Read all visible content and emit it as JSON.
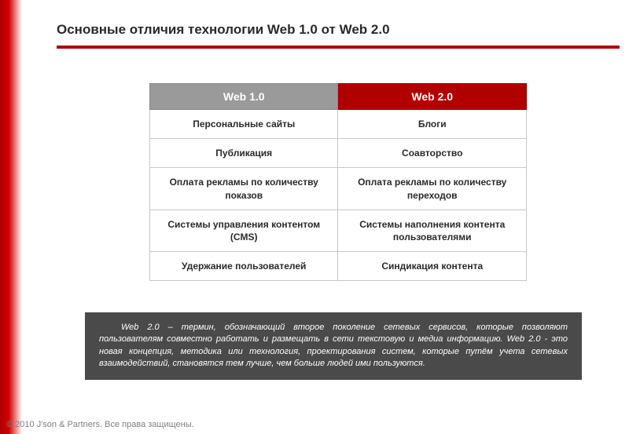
{
  "colors": {
    "accent_red": "#b00000",
    "header_gray": "#9a9a9a",
    "quote_bg": "#4a4a4a",
    "text_dark": "#2a2a2a",
    "border": "#c8c8c8",
    "footer_gray": "#808080",
    "white": "#ffffff"
  },
  "title": "Основные отличия технологии Web 1.0 от Web 2.0",
  "table": {
    "headers": {
      "left": "Web 1.0",
      "right": "Web 2.0"
    },
    "rows": [
      {
        "left": "Персональные сайты",
        "right": "Блоги"
      },
      {
        "left": "Публикация",
        "right": "Соавторство"
      },
      {
        "left": "Оплата рекламы по количеству показов",
        "right": "Оплата рекламы по количеству переходов"
      },
      {
        "left": "Системы управления контентом (CMS)",
        "right": "Системы наполнения контента пользователями"
      },
      {
        "left": "Удержание пользователей",
        "right": "Синдикация контента"
      }
    ]
  },
  "quote": "Web 2.0 – термин, обозначающий второе поколение сетевых сервисов, которые позволяют пользователям совместно работать и размещать в сети текстовую и медиа информацию. Web 2.0 - это новая концепция, методика или технология, проектирования систем, которые путём учета сетевых взаимодействий, становятся тем лучше, чем больше людей ими пользуются.",
  "footer": "© 2010 J'son & Partners. Все права защищены."
}
